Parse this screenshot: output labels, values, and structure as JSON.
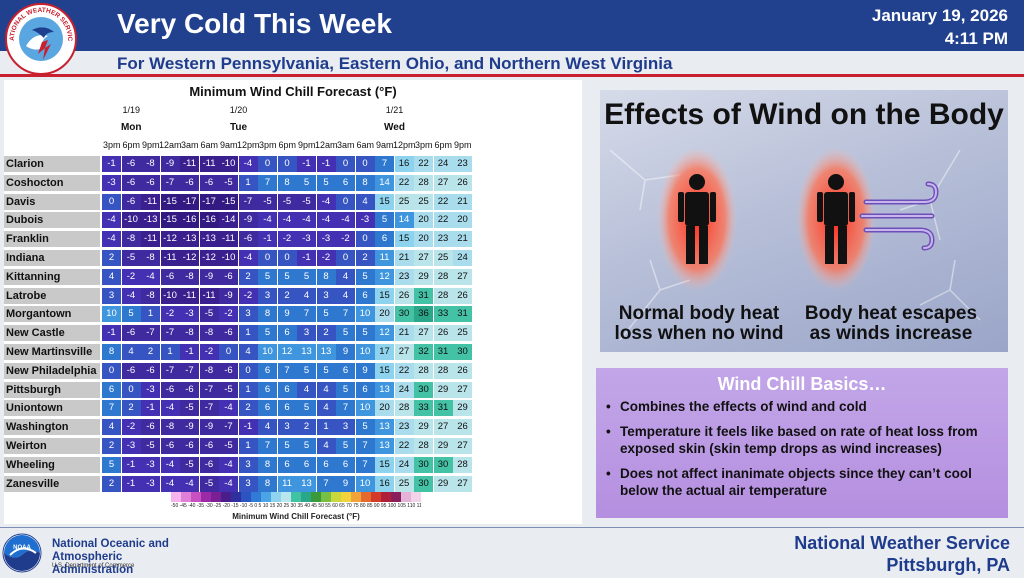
{
  "header": {
    "title": "Very Cold This Week",
    "date": "January 19, 2026",
    "time": "4:11 PM",
    "subtitle": "For Western Pennsylvania, Eastern Ohio, and Northern West Virginia",
    "logo_text": "NATIONAL WEATHER SERVICE"
  },
  "table": {
    "title": "Minimum Wind Chill Forecast (°F)",
    "days": [
      {
        "date": "1/19",
        "name": "Mon",
        "span": 3
      },
      {
        "date": "1/20",
        "name": "Tue",
        "span": 8
      },
      {
        "date": "1/21",
        "name": "Wed",
        "span": 8
      }
    ],
    "times": [
      "3pm",
      "6pm",
      "9pm",
      "12am",
      "3am",
      "6am",
      "9am",
      "12pm",
      "3pm",
      "6pm",
      "9pm",
      "12am",
      "3am",
      "6am",
      "9am",
      "12pm",
      "3pm",
      "6pm",
      "9pm"
    ],
    "rows": [
      {
        "location": "Clarion",
        "values": [
          -1,
          -6,
          -8,
          -9,
          -11,
          -11,
          -10,
          -4,
          0,
          0,
          -1,
          -1,
          0,
          0,
          7,
          16,
          22,
          24,
          23
        ]
      },
      {
        "location": "Coshocton",
        "values": [
          -3,
          -6,
          -6,
          -7,
          -6,
          -6,
          -5,
          1,
          7,
          8,
          5,
          5,
          6,
          8,
          14,
          22,
          28,
          27,
          26
        ]
      },
      {
        "location": "Davis",
        "values": [
          0,
          -6,
          -11,
          -15,
          -17,
          -17,
          -15,
          -7,
          -5,
          -5,
          -5,
          -4,
          0,
          4,
          15,
          25,
          25,
          22,
          21
        ]
      },
      {
        "location": "Dubois",
        "values": [
          -4,
          -10,
          -13,
          -15,
          -16,
          -16,
          -14,
          -9,
          -4,
          -4,
          -4,
          -4,
          -4,
          -3,
          5,
          14,
          20,
          22,
          20
        ]
      },
      {
        "location": "Franklin",
        "values": [
          -4,
          -8,
          -11,
          -12,
          -13,
          -13,
          -11,
          -6,
          -1,
          -2,
          -3,
          -3,
          -2,
          0,
          6,
          15,
          20,
          23,
          21
        ]
      },
      {
        "location": "Indiana",
        "values": [
          2,
          -5,
          -8,
          -11,
          -12,
          -12,
          -10,
          -4,
          0,
          0,
          -1,
          -2,
          0,
          2,
          11,
          21,
          27,
          25,
          24
        ]
      },
      {
        "location": "Kittanning",
        "values": [
          4,
          -2,
          -4,
          -6,
          -8,
          -9,
          -6,
          2,
          5,
          5,
          5,
          8,
          4,
          5,
          12,
          23,
          29,
          28,
          27
        ]
      },
      {
        "location": "Latrobe",
        "values": [
          3,
          -4,
          -8,
          -10,
          -11,
          -11,
          -9,
          -2,
          3,
          2,
          4,
          3,
          4,
          6,
          15,
          26,
          31,
          28,
          26
        ]
      },
      {
        "location": "Morgantown",
        "values": [
          10,
          5,
          1,
          -2,
          -3,
          -5,
          -2,
          3,
          8,
          9,
          7,
          5,
          7,
          10,
          20,
          30,
          36,
          33,
          31
        ]
      },
      {
        "location": "New Castle",
        "values": [
          -1,
          -6,
          -7,
          -7,
          -8,
          -8,
          -6,
          1,
          5,
          6,
          3,
          2,
          5,
          5,
          12,
          21,
          27,
          26,
          25
        ]
      },
      {
        "location": "New Martinsville",
        "values": [
          8,
          4,
          2,
          1,
          -1,
          -2,
          0,
          4,
          10,
          12,
          13,
          13,
          9,
          10,
          17,
          27,
          32,
          31,
          30
        ]
      },
      {
        "location": "New Philadelphia",
        "values": [
          0,
          -6,
          -6,
          -7,
          -7,
          -8,
          -6,
          0,
          6,
          7,
          5,
          5,
          6,
          9,
          15,
          22,
          28,
          28,
          26
        ]
      },
      {
        "location": "Pittsburgh",
        "values": [
          6,
          0,
          -3,
          -6,
          -6,
          -7,
          -5,
          1,
          6,
          6,
          4,
          4,
          5,
          6,
          13,
          24,
          30,
          29,
          27
        ]
      },
      {
        "location": "Uniontown",
        "values": [
          7,
          2,
          -1,
          -4,
          -5,
          -7,
          -4,
          2,
          6,
          6,
          5,
          4,
          7,
          10,
          20,
          28,
          33,
          31,
          29
        ]
      },
      {
        "location": "Washington",
        "values": [
          4,
          -2,
          -6,
          -8,
          -9,
          -9,
          -7,
          -1,
          4,
          3,
          2,
          1,
          3,
          5,
          13,
          23,
          29,
          27,
          26
        ]
      },
      {
        "location": "Weirton",
        "values": [
          2,
          -3,
          -5,
          -6,
          -6,
          -6,
          -5,
          1,
          7,
          5,
          5,
          4,
          5,
          7,
          13,
          22,
          28,
          29,
          27
        ]
      },
      {
        "location": "Wheeling",
        "values": [
          5,
          -1,
          -3,
          -4,
          -5,
          -6,
          -4,
          3,
          8,
          6,
          6,
          6,
          6,
          7,
          15,
          24,
          30,
          30,
          28
        ]
      },
      {
        "location": "Zanesville",
        "values": [
          2,
          -1,
          -3,
          -4,
          -4,
          -5,
          -4,
          3,
          8,
          11,
          13,
          7,
          9,
          10,
          16,
          25,
          30,
          29,
          27
        ]
      }
    ],
    "scale_labels": "-50 -45 -40 -35 -30 -25 -20 -15 -10 -5 0 5 10 15 20 25 30 35 40 45 50 55 60 65 70 75 80 85 90 95 100 105 110 115 120 125 130 135 140",
    "scale_title": "Minimum Wind Chill Forecast (°F)"
  },
  "effects": {
    "title": "Effects of Wind on the Body",
    "caption_left": "Normal body heat loss when no wind",
    "caption_right": "Body heat escapes as winds increase"
  },
  "basics": {
    "title": "Wind Chill Basics…",
    "bullets": [
      "Combines the effects of wind and cold",
      "Temperature it feels like based on rate of heat loss from exposed skin (skin temp drops as wind increases)",
      "Does not affect inanimate objects since they can’t cool below the actual air temperature"
    ]
  },
  "footer": {
    "noaa_name": "National Oceanic and Atmospheric Administration",
    "noaa_dept": "U.S. Department of Commerce",
    "noaa_logo_text": "NOAA",
    "office": "National Weather Service",
    "city": "Pittsburgh, PA"
  },
  "colors": {
    "header_bg": "#21418f",
    "accent_red": "#c8202f",
    "text_blue": "#1f3c8c",
    "basics_bg": "#b58fe0"
  }
}
